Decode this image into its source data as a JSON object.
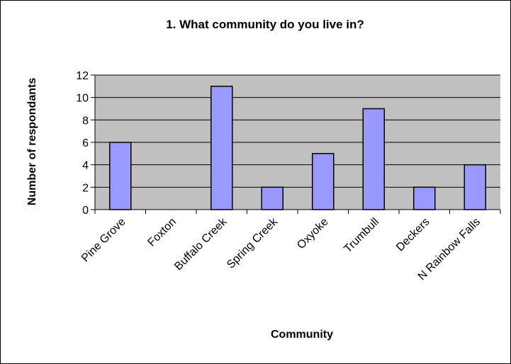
{
  "chart_data": {
    "type": "bar",
    "title": "1.  What community do you live in?",
    "xlabel": "Community",
    "ylabel": "Number of respondants",
    "categories": [
      "Pine Grove",
      "Foxton",
      "Buffalo Creek",
      "Spring Creek",
      "Oxyoke",
      "Trumbull",
      "Deckers",
      "N Rainbow Falls"
    ],
    "values": [
      6,
      0,
      11,
      2,
      5,
      9,
      2,
      4
    ],
    "ylim": [
      0,
      12
    ],
    "yticks": [
      "0",
      "2",
      "4",
      "6",
      "8",
      "10",
      "12"
    ],
    "grid": true,
    "legend": "none",
    "colors": {
      "plot_background": "#c0c0c0",
      "bar_fill": "#9999ff",
      "bar_stroke": "#000000",
      "gridline": "#000000"
    }
  }
}
